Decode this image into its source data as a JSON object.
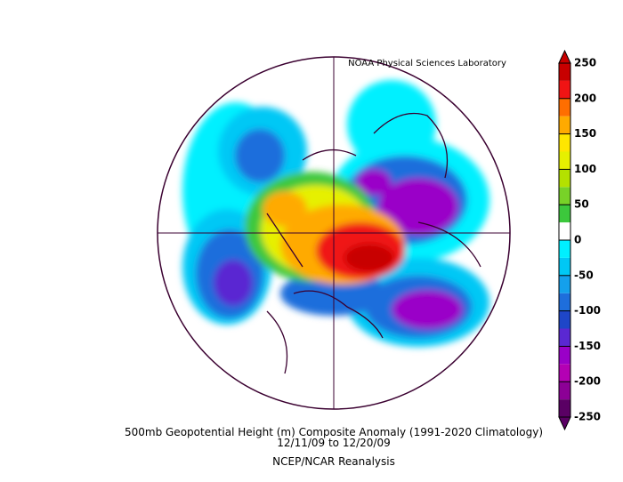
{
  "header": {
    "credit": "NOAA Physical Sciences Laboratory"
  },
  "caption": {
    "line1": "500mb Geopotential Height (m) Composite Anomaly (1991-2020 Climatology)",
    "line2": "12/11/09  to 12/20/09",
    "line3": "NCEP/NCAR Reanalysis"
  },
  "colorbar": {
    "levels": [
      -250,
      -225,
      -200,
      -175,
      -150,
      -125,
      -100,
      -75,
      -50,
      -25,
      0,
      25,
      50,
      75,
      100,
      125,
      150,
      175,
      200,
      225,
      250
    ],
    "colors": [
      "#5a0064",
      "#8c0096",
      "#b400b4",
      "#9a00c8",
      "#5a28d2",
      "#1e46c8",
      "#1e6edc",
      "#14a0ec",
      "#00c8f5",
      "#00f0ff",
      "#ffffff",
      "#3cc83c",
      "#78d228",
      "#b4e100",
      "#e6f000",
      "#ffe600",
      "#ffaa00",
      "#ff6e00",
      "#f01414",
      "#c80000"
    ],
    "ticks": [
      250,
      200,
      150,
      100,
      50,
      0,
      -50,
      -100,
      -150,
      -200,
      -250
    ]
  }
}
